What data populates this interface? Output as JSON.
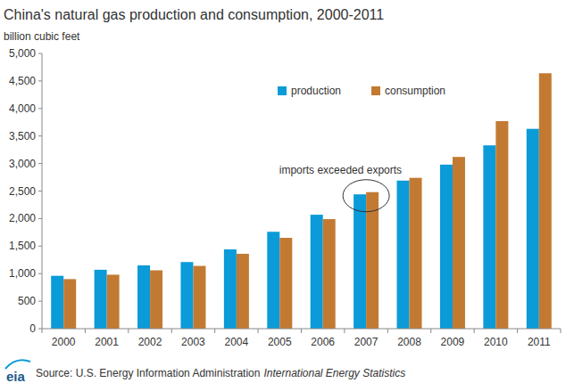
{
  "chart_data": {
    "type": "bar",
    "title": "China's natural gas production and consumption, 2000-2011",
    "y_label": "billion cubic feet",
    "categories": [
      "2000",
      "2001",
      "2002",
      "2003",
      "2004",
      "2005",
      "2006",
      "2007",
      "2008",
      "2009",
      "2010",
      "2011"
    ],
    "series": [
      {
        "name": "production",
        "color": "#0a9bd8",
        "values": [
          960,
          1070,
          1150,
          1210,
          1440,
          1760,
          2070,
          2440,
          2690,
          2980,
          3330,
          3630
        ]
      },
      {
        "name": "consumption",
        "color": "#c27a33",
        "values": [
          900,
          980,
          1060,
          1140,
          1360,
          1650,
          1990,
          2480,
          2740,
          3120,
          3770,
          4640
        ]
      }
    ],
    "ylim": [
      0,
      5000
    ],
    "yticks": [
      0,
      500,
      {
        "value": 1000,
        "label": "1,000"
      },
      {
        "value": 1500,
        "label": "1,500"
      },
      {
        "value": 2000,
        "label": "2,000"
      },
      {
        "value": 2500,
        "label": "2,500"
      },
      {
        "value": 3000,
        "label": "3,000"
      },
      {
        "value": 3500,
        "label": "3,500"
      },
      {
        "value": 4000,
        "label": "4,000"
      },
      {
        "value": 4500,
        "label": "4,500"
      },
      {
        "value": 5000,
        "label": "5,000"
      }
    ],
    "grid": false,
    "legend": "top",
    "annotations": [
      {
        "text": "imports exceeded exports",
        "category": "2007"
      }
    ],
    "source": "Source: U.S. Energy Information Administration",
    "source_italic": "International Energy Statistics",
    "logo": "eia"
  }
}
